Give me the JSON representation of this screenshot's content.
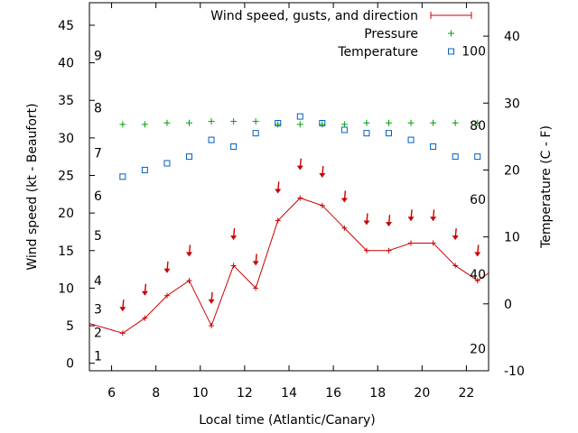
{
  "chart_data": {
    "type": "line",
    "xlabel": "Local time (Atlantic/Canary)",
    "ylabel_left": "Wind speed (kt - Beaufort)",
    "ylabel_right": "Temperature (C - F)",
    "xlim": [
      5,
      23
    ],
    "ylim_left": [
      -1,
      48
    ],
    "ylim_right": [
      -10,
      45
    ],
    "x_ticks": [
      6,
      8,
      10,
      12,
      14,
      16,
      18,
      20,
      22
    ],
    "y_left_ticks": [
      0,
      5,
      10,
      15,
      20,
      25,
      30,
      35,
      40,
      45
    ],
    "y_right_ticks": [
      -10,
      0,
      10,
      20,
      30,
      40
    ],
    "beaufort_labels": [
      {
        "label": "1",
        "kt": 1
      },
      {
        "label": "2",
        "kt": 4.1
      },
      {
        "label": "3",
        "kt": 7.2
      },
      {
        "label": "4",
        "kt": 11
      },
      {
        "label": "5",
        "kt": 17
      },
      {
        "label": "6",
        "kt": 22.3
      },
      {
        "label": "7",
        "kt": 28
      },
      {
        "label": "8",
        "kt": 34
      },
      {
        "label": "9",
        "kt": 41
      }
    ],
    "fahrenheit_labels": [
      {
        "label": "20",
        "celsius": -6.7
      },
      {
        "label": "40",
        "celsius": 4.4
      },
      {
        "label": "60",
        "celsius": 15.6
      },
      {
        "label": "80",
        "celsius": 26.7
      },
      {
        "label": "100",
        "celsius": 37.8
      }
    ],
    "series": [
      {
        "name": "Wind speed, gusts, and direction",
        "color": "#cc0000",
        "x": [
          5,
          6.5,
          7.5,
          8.5,
          9.5,
          10.5,
          11.5,
          12.5,
          13.5,
          14.5,
          15.5,
          16.5,
          17.5,
          18.5,
          19.5,
          20.5,
          21.5,
          22.5,
          23
        ],
        "y": [
          5.3,
          4,
          6,
          9,
          11,
          5,
          13,
          10,
          19,
          22,
          21,
          18,
          15,
          15,
          16,
          16,
          13,
          11,
          12
        ],
        "arrow_y": [
          null,
          7.5,
          9.6,
          12.6,
          14.8,
          8.5,
          17,
          13.6,
          23.2,
          26.3,
          25.3,
          22,
          19,
          18.8,
          19.5,
          19.5,
          17,
          14.8,
          null
        ]
      },
      {
        "name": "Pressure",
        "color": "#00a000",
        "x": [
          6.5,
          7.5,
          8.5,
          9.5,
          10.5,
          11.5,
          12.5,
          13.5,
          14.5,
          15.5,
          16.5,
          17.5,
          18.5,
          19.5,
          20.5,
          21.5,
          22.5
        ],
        "y": [
          31.8,
          31.8,
          32,
          32,
          32.2,
          32.2,
          32.2,
          31.8,
          31.8,
          31.8,
          31.8,
          32,
          32,
          32,
          32,
          32,
          32
        ]
      },
      {
        "name": "Temperature",
        "color": "#0060c0",
        "axis": "right",
        "x": [
          6.5,
          7.5,
          8.5,
          9.5,
          10.5,
          11.5,
          12.5,
          13.5,
          14.5,
          15.5,
          16.5,
          17.5,
          18.5,
          19.5,
          20.5,
          21.5,
          22.5
        ],
        "y": [
          19,
          20,
          21,
          22,
          24.5,
          23.5,
          25.5,
          27,
          28,
          27,
          26,
          25.5,
          25.5,
          24.5,
          23.5,
          22,
          22
        ]
      }
    ]
  }
}
